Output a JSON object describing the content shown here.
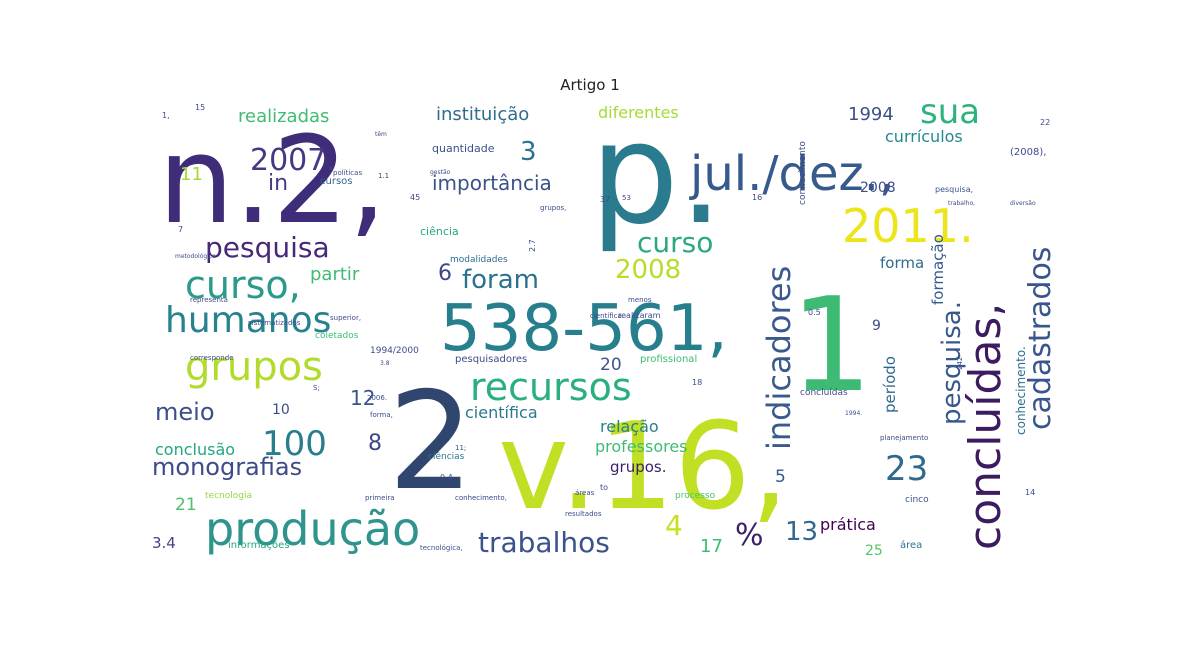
{
  "figure": {
    "title": "Artigo 1"
  },
  "word_cloud": {
    "words": [
      {
        "text": "n.2,",
        "color": "#3f2d7a"
      },
      {
        "text": "p.",
        "color": "#2a7b8e"
      },
      {
        "text": "2",
        "color": "#31466f"
      },
      {
        "text": "v.16,",
        "color": "#c1df23"
      },
      {
        "text": "538-561,",
        "color": "#277f8e"
      },
      {
        "text": "1",
        "color": "#3dbb74"
      },
      {
        "text": "jul./dez.,",
        "color": "#375a8c"
      },
      {
        "text": "2011.",
        "color": "#ece51b"
      },
      {
        "text": "concluídas,",
        "color": "#3c1c60"
      },
      {
        "text": "cadastrados",
        "color": "#39568c"
      },
      {
        "text": "produção",
        "color": "#2e948c"
      },
      {
        "text": "grupos",
        "color": "#b2dc2c"
      },
      {
        "text": "recursos",
        "color": "#2ab07f"
      },
      {
        "text": "humanos",
        "color": "#26828e"
      },
      {
        "text": "indicadores",
        "color": "#3a5a8c"
      },
      {
        "text": "pesquisa",
        "color": "#482878"
      },
      {
        "text": "curso,",
        "color": "#2a9a8a"
      },
      {
        "text": "curso",
        "color": "#2ca880"
      },
      {
        "text": "pesquisa.",
        "color": "#38588c"
      },
      {
        "text": "monografias",
        "color": "#3e4a89"
      },
      {
        "text": "trabalhos",
        "color": "#3b528b"
      },
      {
        "text": "100",
        "color": "#287d8e"
      },
      {
        "text": "2007.",
        "color": "#443983"
      },
      {
        "text": "23",
        "color": "#31688e"
      },
      {
        "text": "sua",
        "color": "#2eb37c"
      },
      {
        "text": "foram",
        "color": "#2c718e"
      },
      {
        "text": "2008",
        "color": "#b5de2b"
      },
      {
        "text": "3",
        "color": "#2c728e"
      },
      {
        "text": "meio",
        "color": "#3d4e8a"
      },
      {
        "text": "in",
        "color": "#433d84"
      },
      {
        "text": "importância",
        "color": "#3b528b"
      },
      {
        "text": "instituição",
        "color": "#2f6c8e"
      },
      {
        "text": "realizadas",
        "color": "#3fbc73"
      },
      {
        "text": "diferentes",
        "color": "#a5db36"
      },
      {
        "text": "1994",
        "color": "#3b518b"
      },
      {
        "text": "currículos",
        "color": "#23898e"
      },
      {
        "text": "%",
        "color": "#3b1f6b"
      },
      {
        "text": "4",
        "color": "#c8e020"
      },
      {
        "text": "13",
        "color": "#31688e"
      },
      {
        "text": "12",
        "color": "#39558c"
      },
      {
        "text": "6",
        "color": "#414487"
      },
      {
        "text": "8",
        "color": "#3f4788"
      },
      {
        "text": "partir",
        "color": "#3fbc73"
      },
      {
        "text": "científica",
        "color": "#2a788e"
      },
      {
        "text": "conclusão",
        "color": "#22a785"
      },
      {
        "text": "professores",
        "color": "#3fbc73"
      },
      {
        "text": "relação",
        "color": "#26818e"
      },
      {
        "text": "grupos.",
        "color": "#3b1f6b"
      },
      {
        "text": "forma",
        "color": "#2f6c8e"
      },
      {
        "text": "formação",
        "color": "#375b8d"
      },
      {
        "text": "período",
        "color": "#31688e"
      },
      {
        "text": "conhecimento.",
        "color": "#2e6f8e"
      },
      {
        "text": "prática",
        "color": "#440154"
      },
      {
        "text": "17",
        "color": "#3fbc73"
      },
      {
        "text": "20",
        "color": "#3a548c"
      },
      {
        "text": "21",
        "color": "#4ac16d"
      },
      {
        "text": "25",
        "color": "#52c569"
      },
      {
        "text": "3.4",
        "color": "#414487"
      },
      {
        "text": "5",
        "color": "#38588c"
      },
      {
        "text": "9",
        "color": "#3e4989"
      },
      {
        "text": "10",
        "color": "#3e4c8a"
      },
      {
        "text": "11",
        "color": "#a0da39"
      },
      {
        "text": "2008",
        "color": "#3e4c8a"
      },
      {
        "text": "quantidade",
        "color": "#3b528b"
      },
      {
        "text": "cursos",
        "color": "#30698e"
      },
      {
        "text": "ciências",
        "color": "#2a788e"
      },
      {
        "text": "pesquisadores",
        "color": "#3e4a89"
      },
      {
        "text": "profissional",
        "color": "#3fbc73"
      },
      {
        "text": "conhecimento",
        "color": "#3e4c8a"
      },
      {
        "text": "modalidades",
        "color": "#2f6c8e"
      },
      {
        "text": "ciência",
        "color": "#22a785"
      },
      {
        "text": "área",
        "color": "#2b748e"
      },
      {
        "text": "informações",
        "color": "#22a785"
      },
      {
        "text": "tecnologia",
        "color": "#94d840"
      },
      {
        "text": "processo",
        "color": "#4ac16d"
      },
      {
        "text": "cinco",
        "color": "#3b528b"
      },
      {
        "text": "(2008),",
        "color": "#3e4a89"
      },
      {
        "text": "pesquisa,",
        "color": "#3b528b"
      },
      {
        "text": "1994/2000",
        "color": "#3e4c8a"
      },
      {
        "text": "coletados",
        "color": "#3fbc73"
      },
      {
        "text": "conhecimento,",
        "color": "#3e4a89"
      },
      {
        "text": "resultados",
        "color": "#3e4c8a"
      },
      {
        "text": "concluídas",
        "color": "#3e4c8a"
      },
      {
        "text": "áreas",
        "color": "#3e4c8a"
      },
      {
        "text": "científica.",
        "color": "#3e4c8a"
      },
      {
        "text": "realizaram",
        "color": "#3e4c8a"
      },
      {
        "text": "menos",
        "color": "#3e4c8a"
      },
      {
        "text": "primeira",
        "color": "#3e4c8a"
      },
      {
        "text": "tecnológica,",
        "color": "#3e4c8a"
      },
      {
        "text": "2006.",
        "color": "#3e4c8a"
      },
      {
        "text": "forma,",
        "color": "#3e4c8a"
      },
      {
        "text": "sistematizados",
        "color": "#3e4c8a"
      },
      {
        "text": "corresponde",
        "color": "#3e4c8a"
      },
      {
        "text": "representa",
        "color": "#3e4c8a"
      },
      {
        "text": "metodológica",
        "color": "#3e4c8a"
      },
      {
        "text": "políticas",
        "color": "#3e4c8a"
      },
      {
        "text": "gestão",
        "color": "#3e4c8a"
      },
      {
        "text": "superior,",
        "color": "#3e4c8a"
      },
      {
        "text": "planejamento",
        "color": "#3e4c8a"
      },
      {
        "text": "1994.",
        "color": "#3e4c8a"
      },
      {
        "text": "diversão",
        "color": "#3e4c8a"
      },
      {
        "text": "trabalho,",
        "color": "#3e4c8a"
      },
      {
        "text": "22",
        "color": "#3e4c8a"
      },
      {
        "text": "15",
        "color": "#3e4c8a"
      },
      {
        "text": "45",
        "color": "#3e4c8a"
      },
      {
        "text": "37",
        "color": "#3e4c8a"
      },
      {
        "text": "2.7",
        "color": "#3e4c8a"
      },
      {
        "text": "0.4",
        "color": "#3e4c8a"
      },
      {
        "text": "0.5",
        "color": "#3e4c8a"
      },
      {
        "text": "18",
        "color": "#3e4c8a"
      },
      {
        "text": "16",
        "color": "#3e4c8a"
      },
      {
        "text": "14",
        "color": "#3e4c8a"
      },
      {
        "text": "1.1",
        "color": "#3e4c8a"
      },
      {
        "text": "1,",
        "color": "#3e4c8a"
      },
      {
        "text": "7",
        "color": "#3e4c8a"
      },
      {
        "text": "S;",
        "color": "#3e4c8a"
      },
      {
        "text": "11;",
        "color": "#3e4c8a"
      },
      {
        "text": "to",
        "color": "#3e4c8a"
      },
      {
        "text": "têm",
        "color": "#3e4c8a"
      },
      {
        "text": "grupos,",
        "color": "#3e4c8a"
      },
      {
        "text": "3.8",
        "color": "#3e4c8a"
      },
      {
        "text": "53",
        "color": "#3e4c8a"
      },
      {
        "text": "242",
        "color": "#3e4c8a"
      }
    ]
  }
}
